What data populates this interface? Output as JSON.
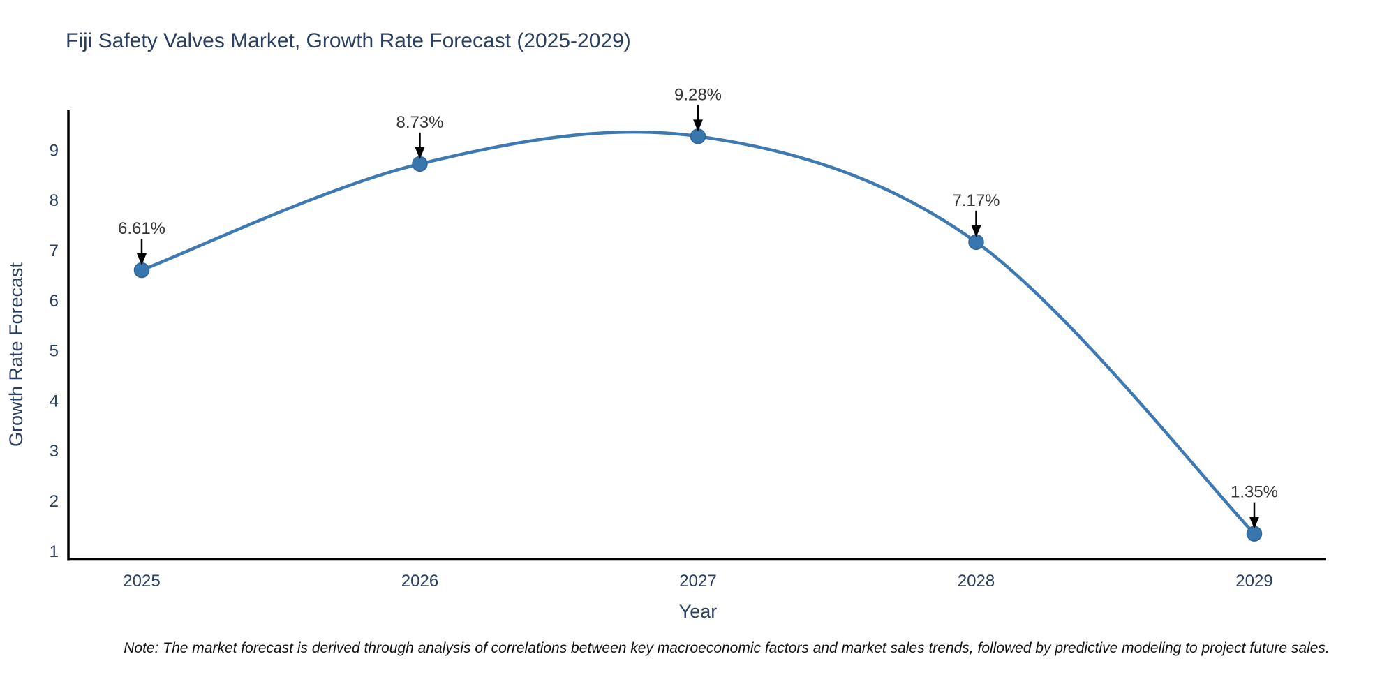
{
  "chart_data": {
    "type": "line",
    "title": "Fiji Safety Valves Market, Growth Rate Forecast (2025-2029)",
    "xlabel": "Year",
    "ylabel": "Growth Rate Forecast",
    "categories": [
      "2025",
      "2026",
      "2027",
      "2028",
      "2029"
    ],
    "values": [
      6.61,
      8.73,
      9.28,
      7.17,
      1.35
    ],
    "point_labels": [
      "6.61%",
      "8.73%",
      "9.28%",
      "7.17%",
      "1.35%"
    ],
    "yticks": [
      1,
      2,
      3,
      4,
      5,
      6,
      7,
      8,
      9
    ],
    "ylim": [
      0.83,
      9.8
    ],
    "line_shape": "spline",
    "grid": false,
    "legend": "none",
    "colors": {
      "line": "#3e79b2",
      "marker_fill": "#3876ae",
      "marker_edge": "#2e6395",
      "axis": "#000000",
      "tick_text": "#2a3f5f",
      "annotation_text": "#363636",
      "arrow": "#000000"
    }
  },
  "note": "Note: The market forecast is derived through analysis of correlations between key macroeconomic factors and market sales trends, followed by predictive modeling to project future sales."
}
